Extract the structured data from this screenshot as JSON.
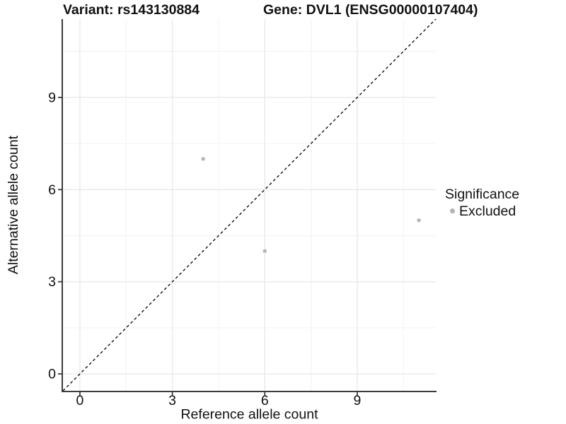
{
  "chart_data": {
    "type": "scatter",
    "titles": {
      "left": "Variant: rs143130884",
      "right": "Gene: DVL1 (ENSG00000107404)"
    },
    "xlabel": "Reference allele count",
    "ylabel": "Alternative allele count",
    "xlim": [
      -0.55,
      11.55
    ],
    "ylim": [
      -0.55,
      11.55
    ],
    "x_ticks": [
      0,
      3,
      6,
      9
    ],
    "y_ticks": [
      0,
      3,
      6,
      9
    ],
    "minor_gridlines": [
      1.5,
      4.5,
      7.5,
      10.5
    ],
    "grid": "major and minor gridlines, light gray on white panel",
    "legend_position": "right",
    "identity_line": {
      "equation": "y = x",
      "style": "dashed",
      "color": "#000000"
    },
    "legend": {
      "title": "Significance",
      "items": [
        {
          "label": "Excluded",
          "marker": "circle",
          "color": "#b5b5b5"
        }
      ]
    },
    "series": [
      {
        "name": "Excluded",
        "marker": "circle",
        "color": "#b5b5b5",
        "points": [
          {
            "x": 4,
            "y": 7
          },
          {
            "x": 6,
            "y": 4
          },
          {
            "x": 11,
            "y": 5
          }
        ]
      }
    ]
  },
  "colors": {
    "background": "#ffffff",
    "axis_line": "#3c3c3c",
    "tick_mark": "#3c3c3c",
    "grid_major": "#e9e9e9",
    "grid_minor": "#f4f4f4",
    "point": "#b5b5b5",
    "text": "#111111",
    "identity_line": "#000000"
  }
}
